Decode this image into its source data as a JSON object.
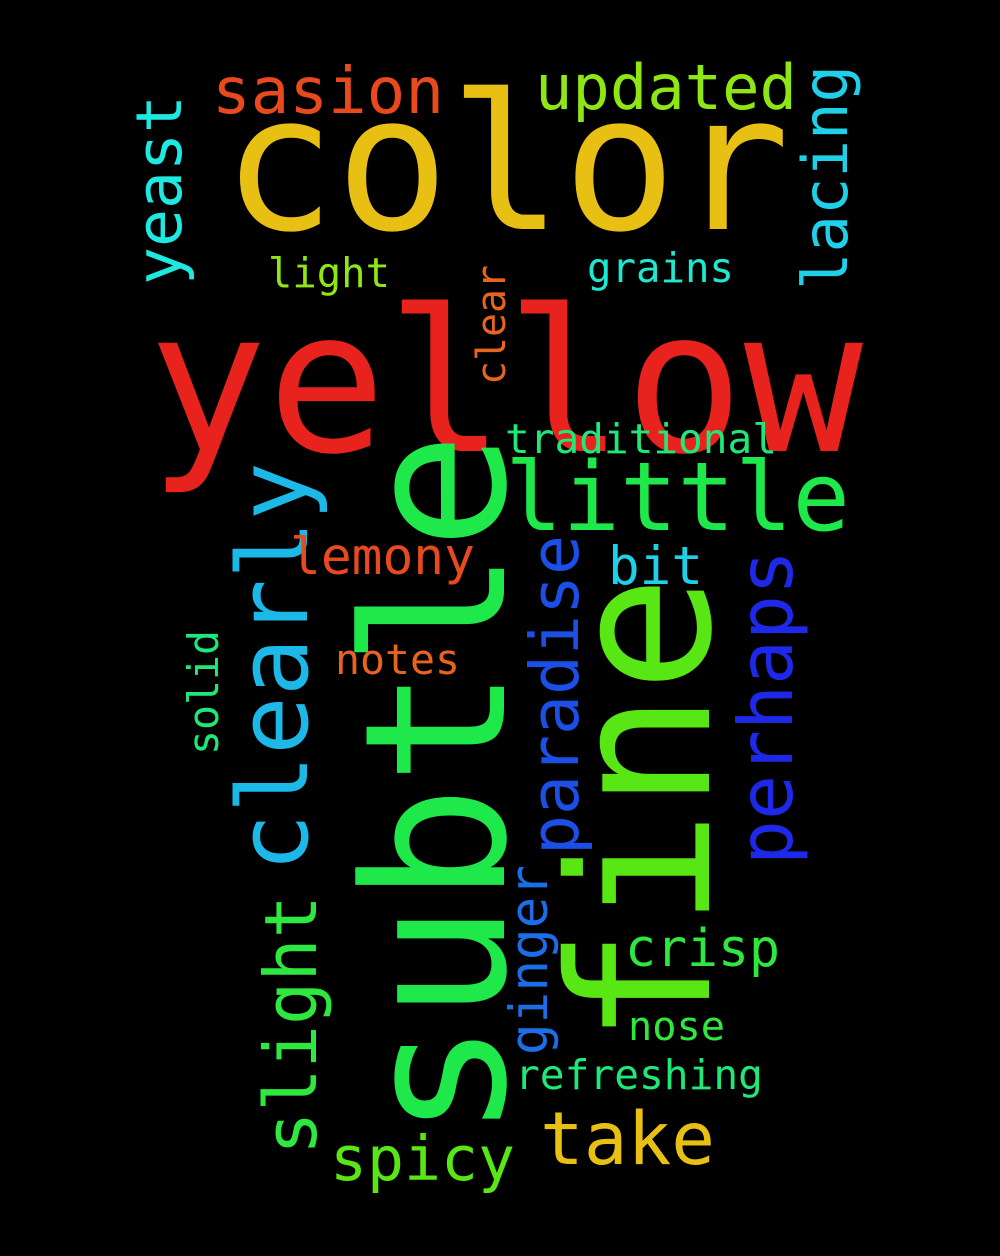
{
  "background": "#000000",
  "words": [
    {
      "id": "yellow",
      "text": "yellow",
      "color": "#e8231e",
      "vertical": false
    },
    {
      "id": "color",
      "text": "color",
      "color": "#e8c014",
      "vertical": false
    },
    {
      "id": "subtle",
      "text": "subtle",
      "color": "#1ee84a",
      "vertical": true
    },
    {
      "id": "fine",
      "text": "fine",
      "color": "#58e614",
      "vertical": true
    },
    {
      "id": "little",
      "text": "little",
      "color": "#1ee84a",
      "vertical": false
    },
    {
      "id": "clearly",
      "text": "clearly",
      "color": "#1cb8e8",
      "vertical": true
    },
    {
      "id": "perhaps",
      "text": "perhaps",
      "color": "#1e28e8",
      "vertical": true
    },
    {
      "id": "paradise",
      "text": "paradise",
      "color": "#1c4ee8",
      "vertical": true
    },
    {
      "id": "slight",
      "text": "slight",
      "color": "#2ee840",
      "vertical": true
    },
    {
      "id": "take",
      "text": "take",
      "color": "#e8c014",
      "vertical": false
    },
    {
      "id": "spicy",
      "text": "spicy",
      "color": "#58e614",
      "vertical": false
    },
    {
      "id": "sasion",
      "text": "sasion",
      "color": "#e84a1e",
      "vertical": false
    },
    {
      "id": "updated",
      "text": "updated",
      "color": "#8ee614",
      "vertical": false
    },
    {
      "id": "lacing",
      "text": "lacing",
      "color": "#1ed0e8",
      "vertical": true
    },
    {
      "id": "yeast",
      "text": "yeast",
      "color": "#1ee8e0",
      "vertical": true
    },
    {
      "id": "lemony",
      "text": "lemony",
      "color": "#e84a1e",
      "vertical": false
    },
    {
      "id": "bit",
      "text": "bit",
      "color": "#1ed0e8",
      "vertical": false
    },
    {
      "id": "crisp",
      "text": "crisp",
      "color": "#2ee840",
      "vertical": false
    },
    {
      "id": "ginger",
      "text": "ginger",
      "color": "#1c6ee8",
      "vertical": true
    },
    {
      "id": "light",
      "text": "light",
      "color": "#8ee614",
      "vertical": false
    },
    {
      "id": "grains",
      "text": "grains",
      "color": "#1ee8d0",
      "vertical": false
    },
    {
      "id": "clear",
      "text": "clear",
      "color": "#e8641e",
      "vertical": true
    },
    {
      "id": "traditional",
      "text": "traditional",
      "color": "#1ee878",
      "vertical": false
    },
    {
      "id": "notes",
      "text": "notes",
      "color": "#e8641e",
      "vertical": false
    },
    {
      "id": "solid",
      "text": "solid",
      "color": "#1ee878",
      "vertical": true
    },
    {
      "id": "nose",
      "text": "nose",
      "color": "#2ee840",
      "vertical": false
    },
    {
      "id": "refreshing",
      "text": "refreshing",
      "color": "#1ee878",
      "vertical": false
    }
  ]
}
